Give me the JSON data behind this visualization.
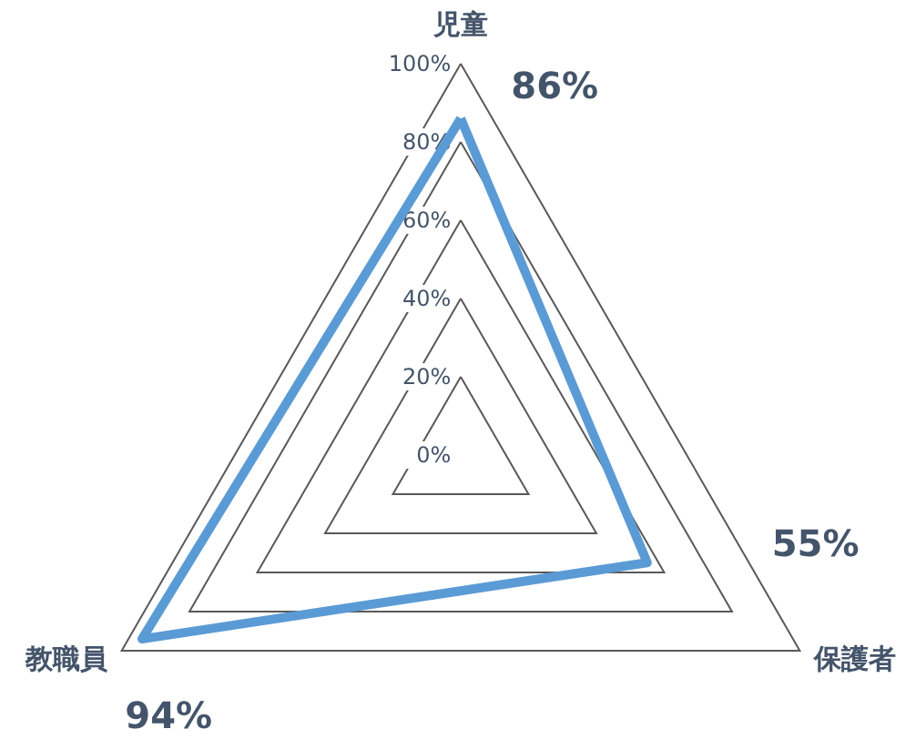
{
  "chart_data": {
    "type": "radar",
    "categories": [
      "児童",
      "保護者",
      "教職員"
    ],
    "series": [
      {
        "color": "#5b9bd5",
        "values": [
          86,
          55,
          94
        ]
      }
    ],
    "ylim": [
      0,
      100
    ],
    "yticks": [
      {
        "value": 0,
        "label": "0%"
      },
      {
        "value": 20,
        "label": "20%"
      },
      {
        "value": 40,
        "label": "40%"
      },
      {
        "value": 60,
        "label": "60%"
      },
      {
        "value": 80,
        "label": "80%"
      },
      {
        "value": 100,
        "label": "100%"
      }
    ],
    "grid": true,
    "legend": false,
    "marker": "none",
    "line_style": "solid",
    "value_labels": [
      "86%",
      "55%",
      "94%"
    ]
  }
}
